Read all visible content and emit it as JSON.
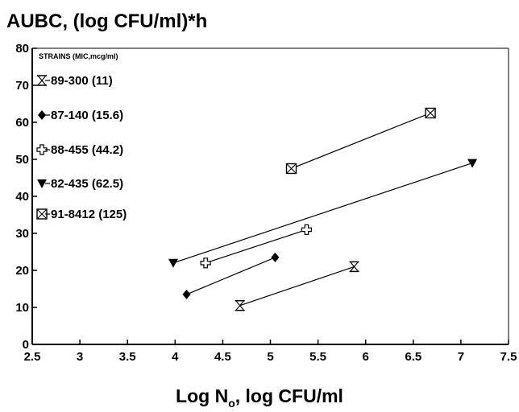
{
  "chart_data": {
    "type": "line",
    "title": "AUBC, (log CFU/ml)*h",
    "xlabel": "Log N",
    "xlabel_sub": "o",
    "xlabel_rest": ", log CFU/ml",
    "ylabel": "",
    "xlim": [
      2.5,
      7.5
    ],
    "ylim": [
      0,
      80
    ],
    "xticks": [
      "2.5",
      "3",
      "3.5",
      "4",
      "4.5",
      "5",
      "5.5",
      "6",
      "6.5",
      "7",
      "7.5"
    ],
    "yticks": [
      "0",
      "10",
      "20",
      "30",
      "40",
      "50",
      "60",
      "70",
      "80"
    ],
    "grid": false,
    "legend_title": "STRAINS (MIC,mcg/ml)",
    "legend_position": "top-left",
    "series": [
      {
        "name": "89-300  (11)",
        "marker": "hourglass-open",
        "points": [
          [
            4.68,
            10.5
          ],
          [
            5.88,
            21
          ]
        ]
      },
      {
        "name": "87-140  (15.6)",
        "marker": "diamond-filled",
        "points": [
          [
            4.12,
            13.5
          ],
          [
            5.05,
            23.5
          ]
        ]
      },
      {
        "name": "88-455  (44.2)",
        "marker": "cross-open",
        "points": [
          [
            4.32,
            22
          ],
          [
            5.38,
            31
          ]
        ]
      },
      {
        "name": "82-435  (62.5)",
        "marker": "triangle-down-filled",
        "points": [
          [
            3.98,
            22
          ],
          [
            7.12,
            49
          ]
        ]
      },
      {
        "name": "91-8412 (125)",
        "marker": "boxed-x",
        "points": [
          [
            5.22,
            47.5
          ],
          [
            6.68,
            62.5
          ]
        ]
      }
    ]
  }
}
